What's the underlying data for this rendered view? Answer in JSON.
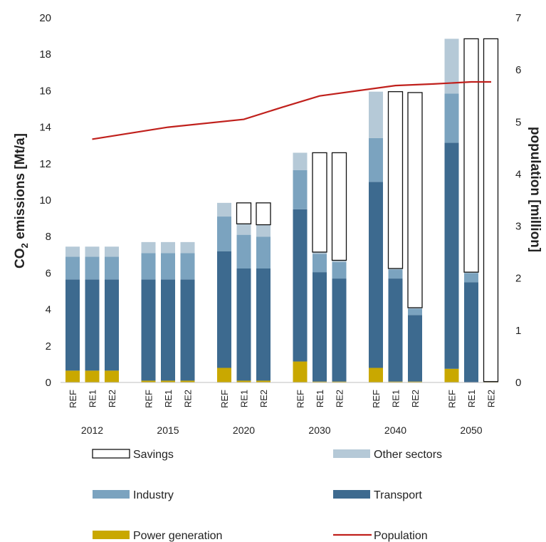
{
  "chart_data": {
    "type": "bar",
    "stacked": true,
    "groups": [
      {
        "label": "2012",
        "scenarios": [
          {
            "label": "REF",
            "power": 0.65,
            "transport": 5.0,
            "industry": 1.25,
            "other": 0.55,
            "savings": 0
          },
          {
            "label": "RE1",
            "power": 0.65,
            "transport": 5.0,
            "industry": 1.25,
            "other": 0.55,
            "savings": 0
          },
          {
            "label": "RE2",
            "power": 0.65,
            "transport": 5.0,
            "industry": 1.25,
            "other": 0.55,
            "savings": 0
          }
        ]
      },
      {
        "label": "2015",
        "scenarios": [
          {
            "label": "REF",
            "power": 0.1,
            "transport": 5.55,
            "industry": 1.45,
            "other": 0.6,
            "savings": 0
          },
          {
            "label": "RE1",
            "power": 0.1,
            "transport": 5.55,
            "industry": 1.45,
            "other": 0.6,
            "savings": 0
          },
          {
            "label": "RE2",
            "power": 0.1,
            "transport": 5.55,
            "industry": 1.45,
            "other": 0.6,
            "savings": 0
          }
        ]
      },
      {
        "label": "2020",
        "scenarios": [
          {
            "label": "REF",
            "power": 0.8,
            "transport": 6.4,
            "industry": 1.9,
            "other": 0.75,
            "savings": 0
          },
          {
            "label": "RE1",
            "power": 0.1,
            "transport": 6.15,
            "industry": 1.85,
            "other": 0.6,
            "savings": 1.15
          },
          {
            "label": "RE2",
            "power": 0.1,
            "transport": 6.15,
            "industry": 1.75,
            "other": 0.65,
            "savings": 1.2
          }
        ]
      },
      {
        "label": "2030",
        "scenarios": [
          {
            "label": "REF",
            "power": 1.15,
            "transport": 8.35,
            "industry": 2.15,
            "other": 0.95,
            "savings": 0
          },
          {
            "label": "RE1",
            "power": 0.05,
            "transport": 6.0,
            "industry": 1.0,
            "other": 0.1,
            "savings": 5.45
          },
          {
            "label": "RE2",
            "power": 0.05,
            "transport": 5.65,
            "industry": 0.9,
            "other": 0.1,
            "savings": 5.9
          }
        ]
      },
      {
        "label": "2040",
        "scenarios": [
          {
            "label": "REF",
            "power": 0.8,
            "transport": 10.2,
            "industry": 2.4,
            "other": 2.55,
            "savings": 0
          },
          {
            "label": "RE1",
            "power": 0.05,
            "transport": 5.65,
            "industry": 0.5,
            "other": 0.05,
            "savings": 9.7
          },
          {
            "label": "RE2",
            "power": 0.05,
            "transport": 3.65,
            "industry": 0.35,
            "other": 0.05,
            "savings": 11.8
          }
        ]
      },
      {
        "label": "2050",
        "scenarios": [
          {
            "label": "REF",
            "power": 0.75,
            "transport": 12.4,
            "industry": 2.7,
            "other": 3.0,
            "savings": 0
          },
          {
            "label": "RE1",
            "power": 0.0,
            "transport": 5.5,
            "industry": 0.5,
            "other": 0.05,
            "savings": 12.8
          },
          {
            "label": "RE2",
            "power": 0.05,
            "transport": 0.0,
            "industry": 0.0,
            "other": 0.0,
            "savings": 18.8
          }
        ]
      }
    ],
    "population": [
      {
        "x": "2012",
        "value": 4.67
      },
      {
        "x": "2015",
        "value": 4.9
      },
      {
        "x": "2020",
        "value": 5.05
      },
      {
        "x": "2020-2030",
        "value": 5.28
      },
      {
        "x": "2030",
        "value": 5.5
      },
      {
        "x": "2030-2040",
        "value": 5.6
      },
      {
        "x": "2040",
        "value": 5.7
      },
      {
        "x": "2040-2050",
        "value": 5.73
      },
      {
        "x": "2050",
        "value": 5.77
      },
      {
        "x": "2050 end",
        "value": 5.77
      }
    ],
    "yleft": {
      "label_main": "CO",
      "label_sub": "2",
      "label_rest": " emissions [Mt/a]",
      "lim": [
        0,
        20
      ],
      "ticks": [
        "0",
        "2",
        "4",
        "6",
        "8",
        "10",
        "12",
        "14",
        "16",
        "18",
        "20"
      ]
    },
    "yright": {
      "label": "population [million]",
      "lim": [
        0,
        7
      ],
      "ticks": [
        "0",
        "1",
        "2",
        "3",
        "4",
        "5",
        "6",
        "7"
      ]
    },
    "legend": [
      {
        "key": "savings",
        "label": "Savings"
      },
      {
        "key": "other",
        "label": "Other sectors"
      },
      {
        "key": "industry",
        "label": "Industry"
      },
      {
        "key": "transport",
        "label": "Transport"
      },
      {
        "key": "power",
        "label": "Power generation"
      },
      {
        "key": "population",
        "label": "Population"
      }
    ],
    "colors": {
      "power": "#c9a800",
      "transport": "#3d6a8f",
      "industry": "#7ba3bf",
      "other": "#b5c9d7",
      "savings": "#ffffff",
      "savings_border": "#111111",
      "population": "#c0201c"
    },
    "legend_placement": "bottom",
    "grid": false
  }
}
